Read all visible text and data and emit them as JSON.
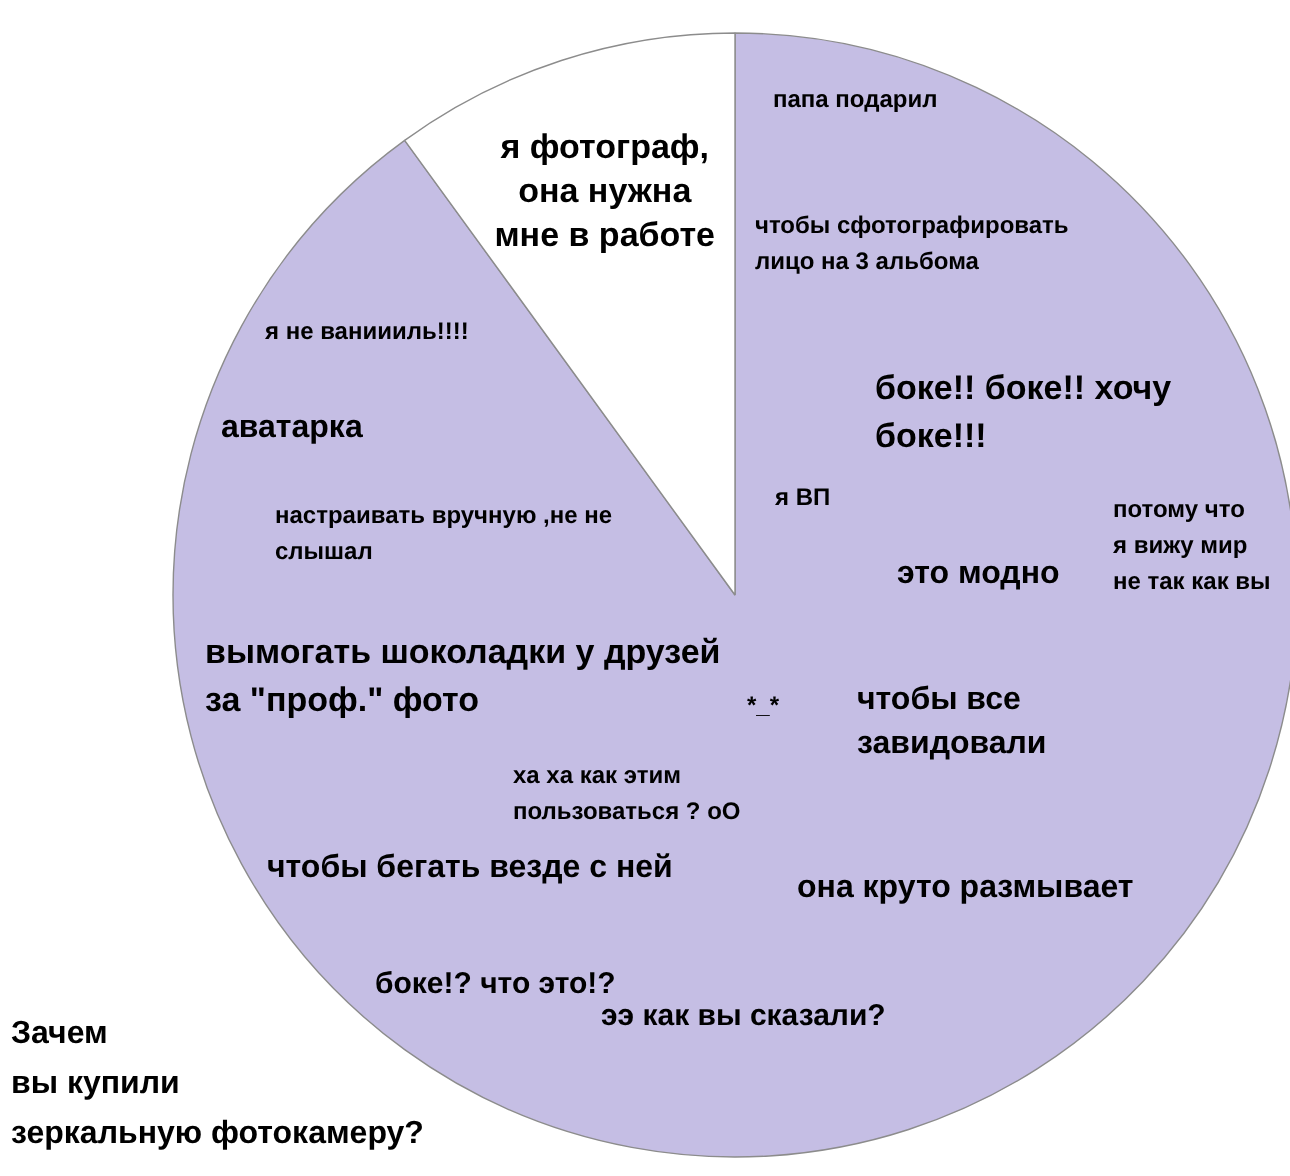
{
  "chart_data": {
    "type": "pie",
    "title": "Зачем\nвы купили\nзеркальную фотокамеру?",
    "categories": [
      null,
      "я фотограф,\nона нужна\nмне в работе"
    ],
    "values": [
      90,
      10
    ],
    "colors": [
      "#c5bee4",
      "#ffffff"
    ],
    "annotations": [
      "папа подарил",
      "чтобы сфотографировать\nлицо на 3 альбома",
      "боке!! боке!! хочу\nбоке!!!",
      "я не ваниииль!!!!",
      "аватарка",
      "настраивать вручную ,не не\nслышал",
      "я ВП",
      "потому что\nя вижу мир\nне так как вы",
      "это модно",
      "вымогать шоколадки у друзей\nза \"проф.\" фото",
      "*_*",
      "чтобы все\nзавидовали",
      "ха ха как этим\nпользоваться ? оО",
      "чтобы бегать везде с ней",
      "она круто размывает",
      "боке!? что это!?",
      "ээ  как вы сказали?"
    ]
  }
}
